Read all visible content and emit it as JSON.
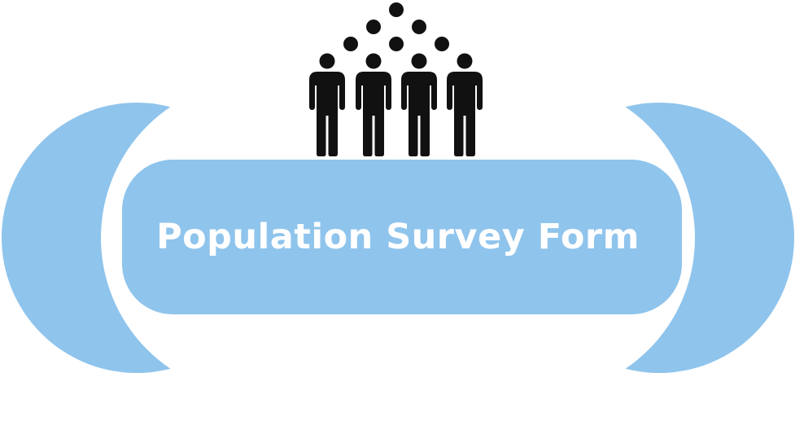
{
  "banner": {
    "title": "Population Survey Form",
    "color": "#8fc4ec",
    "title_color": "#ffffff"
  },
  "icon": {
    "name": "people-group-icon",
    "color": "#111111"
  }
}
